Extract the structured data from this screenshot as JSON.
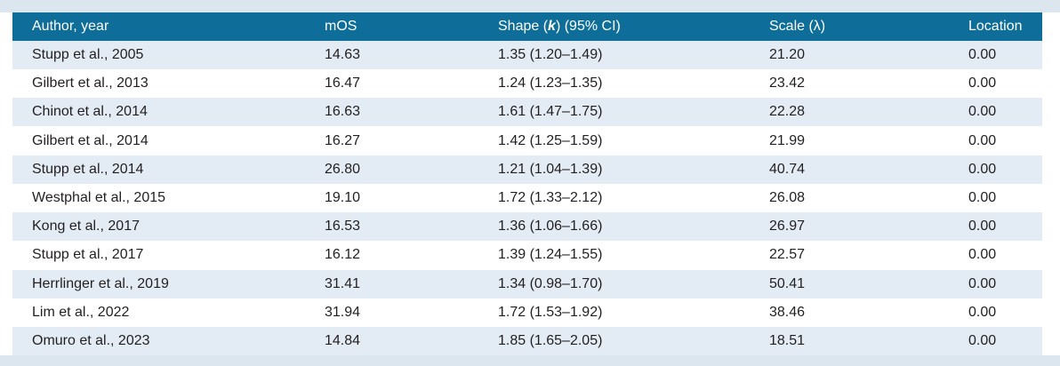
{
  "table": {
    "header": [
      "Author, year",
      "mOS",
      {
        "parts": [
          "Shape (",
          "k",
          ") (95% CI)"
        ]
      },
      "Scale (λ)",
      "Location"
    ],
    "rows": [
      [
        "Stupp et al., 2005",
        "14.63",
        "1.35 (1.20–1.49)",
        "21.20",
        "0.00"
      ],
      [
        "Gilbert et al., 2013",
        "16.47",
        "1.24 (1.23–1.35)",
        "23.42",
        "0.00"
      ],
      [
        "Chinot et al., 2014",
        "16.63",
        "1.61 (1.47–1.75)",
        "22.28",
        "0.00"
      ],
      [
        "Gilbert et al., 2014",
        "16.27",
        "1.42 (1.25–1.59)",
        "21.99",
        "0.00"
      ],
      [
        "Stupp et al., 2014",
        "26.80",
        "1.21 (1.04–1.39)",
        "40.74",
        "0.00"
      ],
      [
        "Westphal et al., 2015",
        "19.10",
        "1.72 (1.33–2.12)",
        "26.08",
        "0.00"
      ],
      [
        "Kong et al., 2017",
        "16.53",
        "1.36 (1.06–1.66)",
        "26.97",
        "0.00"
      ],
      [
        "Stupp et al., 2017",
        "16.12",
        "1.39 (1.24–1.55)",
        "22.57",
        "0.00"
      ],
      [
        "Herrlinger et al., 2019",
        "31.41",
        "1.34 (0.98–1.70)",
        "50.41",
        "0.00"
      ],
      [
        "Lim et al., 2022",
        "31.94",
        "1.72 (1.53–1.92)",
        "38.46",
        "0.00"
      ],
      [
        "Omuro et al., 2023",
        "14.84",
        "1.85 (1.65–2.05)",
        "18.51",
        "0.00"
      ]
    ]
  }
}
